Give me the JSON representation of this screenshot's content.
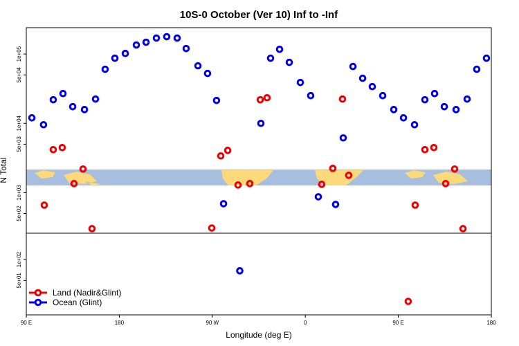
{
  "chart_data": [
    {
      "type": "scatter",
      "title": "10S-0 October (Ver 10)   Inf to -Inf",
      "y_label": "N Total",
      "log_y": true,
      "xlim": [
        90,
        540
      ],
      "ylim": [
        260,
        240000
      ],
      "yticks": [
        {
          "value": 500,
          "label": "5e+02"
        },
        {
          "value": 1000,
          "label": "1e+03"
        },
        {
          "value": 5000,
          "label": "5e+03"
        },
        {
          "value": 10000,
          "label": "1e+04"
        },
        {
          "value": 50000,
          "label": "5e+04"
        },
        {
          "value": 100000,
          "label": "1e+05"
        }
      ],
      "legend": "lower left",
      "series": [
        {
          "name": "Land (Nadir&Glint)",
          "color": "#ee0000",
          "x": [
            107.4,
            116.1,
            124.8,
            136.2,
            144.9,
            153.6,
            269.5,
            278.2,
            284.9,
            294.9,
            306.3,
            316.4,
            323,
            375.9,
            386.6,
            396,
            402,
            466.3,
            475.7,
            484.4,
            495.8,
            504.5,
            512.6
          ],
          "values": [
            661,
            4170,
            4470,
            1350,
            2190,
            302,
            309,
            3390,
            4070,
            1290,
            1350,
            21900,
            23400,
            1320,
            2240,
            22400,
            1780,
            661,
            4170,
            4470,
            1350,
            2190,
            302
          ]
        },
        {
          "name": "Ocean (Glint)",
          "color": "#0000ee",
          "x": [
            95.4,
            106.7,
            116.1,
            125.5,
            134.9,
            146.3,
            157,
            166.3,
            175.7,
            185.8,
            196.5,
            205.9,
            215.9,
            225.9,
            236,
            244.7,
            256.1,
            265.4,
            274.1,
            280.9,
            317,
            326.4,
            335.1,
            344.5,
            355.2,
            365.2,
            372.6,
            389.3,
            396.7,
            406.1,
            415.5,
            424.8,
            434.9,
            445.6,
            455,
            465.7,
            475.7,
            485.1,
            494.5,
            505.9,
            516.6,
            525.9,
            535.3
          ],
          "values": [
            12000,
            9550,
            21900,
            26900,
            17400,
            15800,
            22400,
            60300,
            87100,
            102000,
            135000,
            148000,
            170000,
            178000,
            170000,
            120000,
            67600,
            52500,
            21400,
            692,
            10000,
            87100,
            117000,
            75900,
            38900,
            25100,
            871,
            676,
            6170,
            66100,
            44700,
            33900,
            25100,
            15800,
            12000,
            9550,
            21900,
            26900,
            17400,
            15800,
            22400,
            60300,
            87100
          ]
        }
      ]
    },
    {
      "type": "scatter",
      "x_label": "Longitude (deg E)",
      "log_y": true,
      "xlim": [
        90,
        540
      ],
      "xticks": [
        {
          "value": 90,
          "label": "90 E"
        },
        {
          "value": 180,
          "label": "180"
        },
        {
          "value": 270,
          "label": "90 W"
        },
        {
          "value": 360,
          "label": "0"
        },
        {
          "value": 450,
          "label": "90 E"
        },
        {
          "value": 540,
          "label": "180"
        }
      ],
      "ylim": [
        16,
        240
      ],
      "yticks": [
        {
          "value": 50,
          "label": "5e+01"
        },
        {
          "value": 100,
          "label": "1e+02"
        }
      ],
      "series": [
        {
          "color": "#ee0000",
          "x": [
            459.6
          ],
          "values": [
            25
          ]
        },
        {
          "color": "#0000ee",
          "x": [
            296.6
          ],
          "values": [
            69
          ]
        }
      ]
    }
  ]
}
